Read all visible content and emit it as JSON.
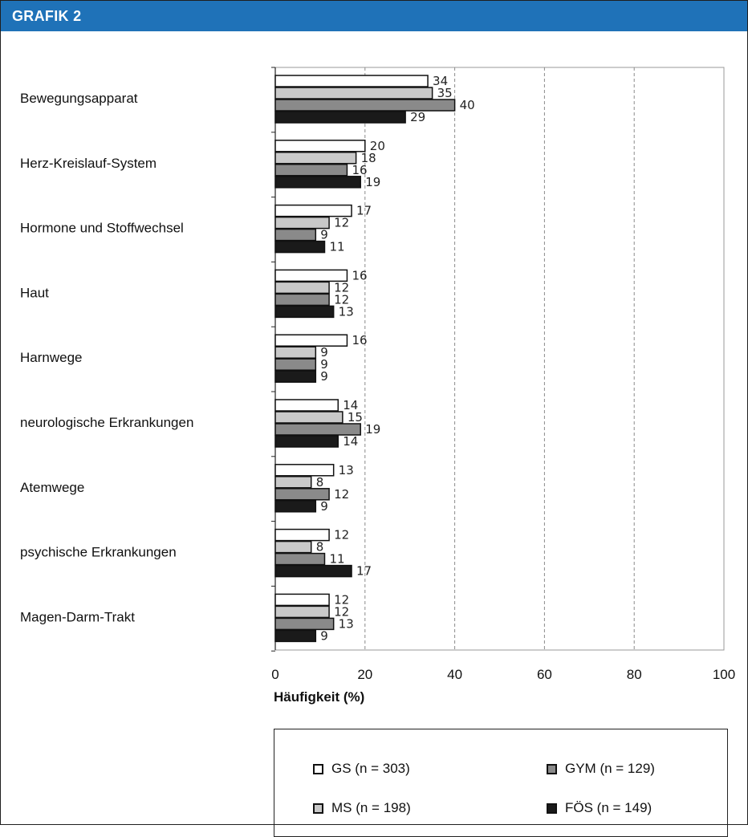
{
  "header": {
    "title": "GRAFIK 2"
  },
  "chart_data": {
    "type": "bar",
    "orientation": "horizontal",
    "categories": [
      "Bewegungsapparat",
      "Herz-Kreislauf-System",
      "Hormone und Stoffwechsel",
      "Haut",
      "Harnwege",
      "neurologische Erkrankungen",
      "Atemwege",
      "psychische Erkrankungen",
      "Magen-Darm-Trakt"
    ],
    "series": [
      {
        "name": "GS (n = 303)",
        "values": [
          34,
          20,
          17,
          16,
          16,
          14,
          13,
          12,
          12
        ],
        "color": "#ffffff"
      },
      {
        "name": "MS (n = 198)",
        "values": [
          35,
          18,
          12,
          12,
          9,
          15,
          8,
          8,
          12
        ],
        "color": "#c9c9c9"
      },
      {
        "name": "GYM (n = 129)",
        "values": [
          40,
          16,
          9,
          12,
          9,
          19,
          12,
          11,
          13
        ],
        "color": "#8a8a8a"
      },
      {
        "name": "FÖS (n = 149)",
        "values": [
          29,
          19,
          11,
          13,
          9,
          14,
          9,
          17,
          9
        ],
        "color": "#1a1a1a"
      }
    ],
    "xlabel": "Häufigkeit (%)",
    "xlim": [
      0,
      100
    ],
    "xticks": [
      "0",
      "20",
      "40",
      "60",
      "80",
      "100"
    ],
    "grid": "vertical dashed",
    "legend_position": "bottom"
  },
  "legend": {
    "items": [
      {
        "label": "GS (n = 303)",
        "color": "#ffffff"
      },
      {
        "label": "GYM (n = 129)",
        "color": "#8a8a8a"
      },
      {
        "label": "MS (n = 198)",
        "color": "#c9c9c9"
      },
      {
        "label": "FÖS (n = 149)",
        "color": "#1a1a1a"
      }
    ]
  }
}
